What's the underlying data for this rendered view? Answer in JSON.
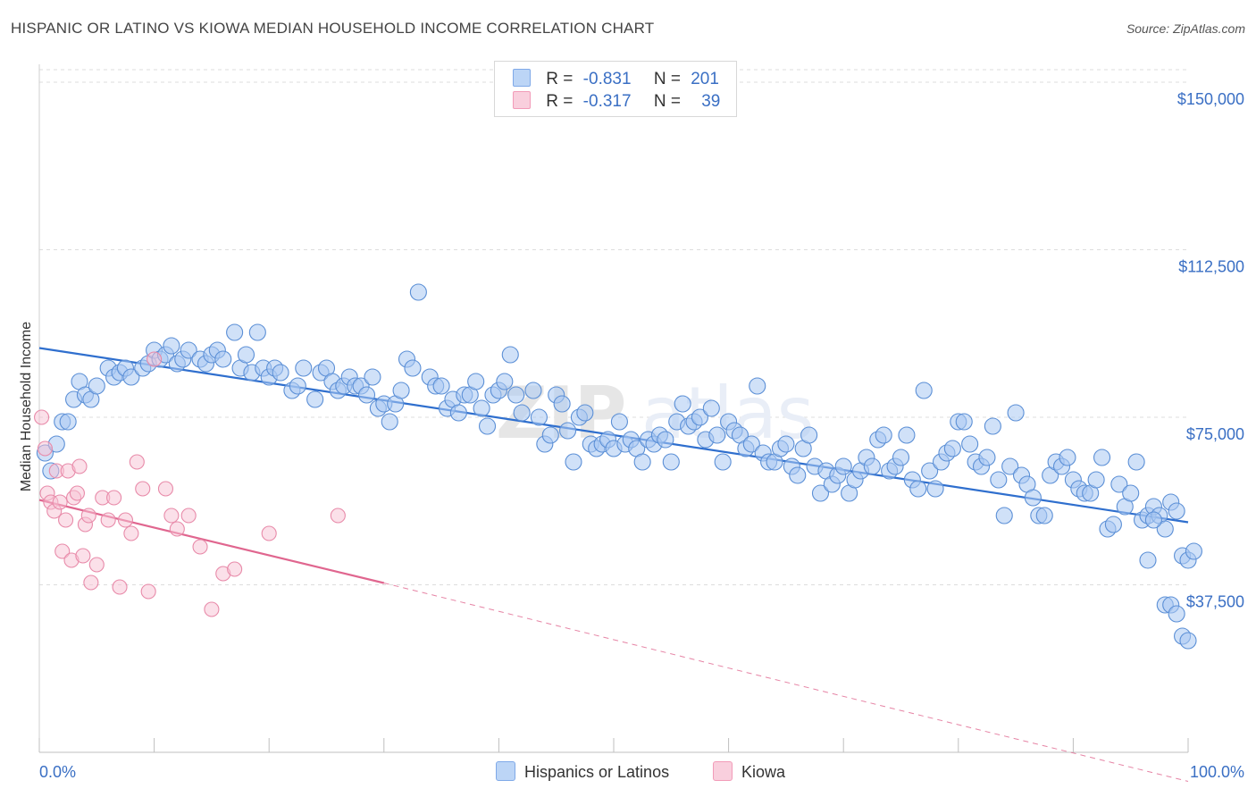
{
  "title": "HISPANIC OR LATINO VS KIOWA MEDIAN HOUSEHOLD INCOME CORRELATION CHART",
  "source": "Source: ZipAtlas.com",
  "watermark": "ZIPatlas",
  "legend": {
    "rows": [
      {
        "r_label": "R =",
        "r_value": "-0.831",
        "n_label": "N =",
        "n_value": "201",
        "color": "#7fa9e8"
      },
      {
        "r_label": "R =",
        "r_value": "-0.317",
        "n_label": "N =",
        "n_value": "39",
        "color": "#f29bb8"
      }
    ],
    "bottom": [
      "Hispanics or Latinos",
      "Kiowa"
    ]
  },
  "colors": {
    "blue_fill": "#a9c8f2",
    "blue_stroke": "#5b8fd6",
    "blue_line": "#2f6fce",
    "pink_fill": "#f7c2d3",
    "pink_stroke": "#e88aa9",
    "pink_line": "#e0668f",
    "tick_text": "#3a6fc4",
    "grid": "#dddddd"
  },
  "chart_data": {
    "type": "scatter",
    "title": "HISPANIC OR LATINO VS KIOWA MEDIAN HOUSEHOLD INCOME CORRELATION CHART",
    "xlabel": "",
    "ylabel": "Median Household Income",
    "x_tick_labels": [
      "0.0%",
      "100.0%"
    ],
    "y_tick_labels": [
      "$37,500",
      "$75,000",
      "$112,500",
      "$150,000"
    ],
    "y_ticks": [
      37500,
      75000,
      112500,
      150000
    ],
    "xlim": [
      0,
      100
    ],
    "ylim": [
      0,
      154000
    ],
    "grid": true,
    "legend_position": "top-center",
    "series": [
      {
        "name": "Hispanics or Latinos",
        "r": -0.831,
        "n": 201,
        "trend": {
          "x": [
            0,
            100
          ],
          "y": [
            90500,
            51500
          ],
          "dashed_after": null
        },
        "points": [
          [
            0.5,
            67000
          ],
          [
            1,
            63000
          ],
          [
            1.5,
            69000
          ],
          [
            2,
            74000
          ],
          [
            2.5,
            74000
          ],
          [
            3,
            79000
          ],
          [
            3.5,
            83000
          ],
          [
            4,
            80000
          ],
          [
            4.5,
            79000
          ],
          [
            5,
            82000
          ],
          [
            6,
            86000
          ],
          [
            6.5,
            84000
          ],
          [
            7,
            85000
          ],
          [
            7.5,
            86000
          ],
          [
            8,
            84000
          ],
          [
            9,
            86000
          ],
          [
            9.5,
            87000
          ],
          [
            10,
            90000
          ],
          [
            10.5,
            88000
          ],
          [
            11,
            89000
          ],
          [
            11.5,
            91000
          ],
          [
            12,
            87000
          ],
          [
            12.5,
            88000
          ],
          [
            13,
            90000
          ],
          [
            14,
            88000
          ],
          [
            14.5,
            87000
          ],
          [
            15,
            89000
          ],
          [
            15.5,
            90000
          ],
          [
            16,
            88000
          ],
          [
            17,
            94000
          ],
          [
            17.5,
            86000
          ],
          [
            18,
            89000
          ],
          [
            18.5,
            85000
          ],
          [
            19,
            94000
          ],
          [
            19.5,
            86000
          ],
          [
            20,
            84000
          ],
          [
            20.5,
            86000
          ],
          [
            21,
            85000
          ],
          [
            22,
            81000
          ],
          [
            22.5,
            82000
          ],
          [
            23,
            86000
          ],
          [
            24,
            79000
          ],
          [
            24.5,
            85000
          ],
          [
            25,
            86000
          ],
          [
            25.5,
            83000
          ],
          [
            26,
            81000
          ],
          [
            26.5,
            82000
          ],
          [
            27,
            84000
          ],
          [
            27.5,
            82000
          ],
          [
            28,
            82000
          ],
          [
            28.5,
            80000
          ],
          [
            29,
            84000
          ],
          [
            29.5,
            77000
          ],
          [
            30,
            78000
          ],
          [
            30.5,
            74000
          ],
          [
            31,
            78000
          ],
          [
            31.5,
            81000
          ],
          [
            32,
            88000
          ],
          [
            32.5,
            86000
          ],
          [
            33,
            103000
          ],
          [
            34,
            84000
          ],
          [
            34.5,
            82000
          ],
          [
            35,
            82000
          ],
          [
            35.5,
            77000
          ],
          [
            36,
            79000
          ],
          [
            36.5,
            76000
          ],
          [
            37,
            80000
          ],
          [
            37.5,
            80000
          ],
          [
            38,
            83000
          ],
          [
            38.5,
            77000
          ],
          [
            39,
            73000
          ],
          [
            39.5,
            80000
          ],
          [
            40,
            81000
          ],
          [
            40.5,
            83000
          ],
          [
            41,
            89000
          ],
          [
            41.5,
            80000
          ],
          [
            42,
            76000
          ],
          [
            43,
            81000
          ],
          [
            43.5,
            75000
          ],
          [
            44,
            69000
          ],
          [
            44.5,
            71000
          ],
          [
            45,
            80000
          ],
          [
            45.5,
            78000
          ],
          [
            46,
            72000
          ],
          [
            46.5,
            65000
          ],
          [
            47,
            75000
          ],
          [
            47.5,
            76000
          ],
          [
            48,
            69000
          ],
          [
            48.5,
            68000
          ],
          [
            49,
            69000
          ],
          [
            49.5,
            70000
          ],
          [
            50,
            68000
          ],
          [
            50.5,
            74000
          ],
          [
            51,
            69000
          ],
          [
            51.5,
            70000
          ],
          [
            52,
            68000
          ],
          [
            52.5,
            65000
          ],
          [
            53,
            70000
          ],
          [
            53.5,
            69000
          ],
          [
            54,
            71000
          ],
          [
            54.5,
            70000
          ],
          [
            55,
            65000
          ],
          [
            55.5,
            74000
          ],
          [
            56,
            78000
          ],
          [
            56.5,
            73000
          ],
          [
            57,
            74000
          ],
          [
            57.5,
            75000
          ],
          [
            58,
            70000
          ],
          [
            58.5,
            77000
          ],
          [
            59,
            71000
          ],
          [
            59.5,
            65000
          ],
          [
            60,
            74000
          ],
          [
            60.5,
            72000
          ],
          [
            61,
            71000
          ],
          [
            61.5,
            68000
          ],
          [
            62,
            69000
          ],
          [
            62.5,
            82000
          ],
          [
            63,
            67000
          ],
          [
            63.5,
            65000
          ],
          [
            64,
            65000
          ],
          [
            64.5,
            68000
          ],
          [
            65,
            69000
          ],
          [
            65.5,
            64000
          ],
          [
            66,
            62000
          ],
          [
            66.5,
            68000
          ],
          [
            67,
            71000
          ],
          [
            67.5,
            64000
          ],
          [
            68,
            58000
          ],
          [
            68.5,
            63000
          ],
          [
            69,
            60000
          ],
          [
            69.5,
            62000
          ],
          [
            70,
            64000
          ],
          [
            70.5,
            58000
          ],
          [
            71,
            61000
          ],
          [
            71.5,
            63000
          ],
          [
            72,
            66000
          ],
          [
            72.5,
            64000
          ],
          [
            73,
            70000
          ],
          [
            73.5,
            71000
          ],
          [
            74,
            63000
          ],
          [
            74.5,
            64000
          ],
          [
            75,
            66000
          ],
          [
            75.5,
            71000
          ],
          [
            76,
            61000
          ],
          [
            76.5,
            59000
          ],
          [
            77,
            81000
          ],
          [
            77.5,
            63000
          ],
          [
            78,
            59000
          ],
          [
            78.5,
            65000
          ],
          [
            79,
            67000
          ],
          [
            79.5,
            68000
          ],
          [
            80,
            74000
          ],
          [
            80.5,
            74000
          ],
          [
            81,
            69000
          ],
          [
            81.5,
            65000
          ],
          [
            82,
            64000
          ],
          [
            82.5,
            66000
          ],
          [
            83,
            73000
          ],
          [
            83.5,
            61000
          ],
          [
            84,
            53000
          ],
          [
            84.5,
            64000
          ],
          [
            85,
            76000
          ],
          [
            85.5,
            62000
          ],
          [
            86,
            60000
          ],
          [
            86.5,
            57000
          ],
          [
            87,
            53000
          ],
          [
            87.5,
            53000
          ],
          [
            88,
            62000
          ],
          [
            88.5,
            65000
          ],
          [
            89,
            64000
          ],
          [
            89.5,
            66000
          ],
          [
            90,
            61000
          ],
          [
            90.5,
            59000
          ],
          [
            91,
            58000
          ],
          [
            91.5,
            58000
          ],
          [
            92,
            61000
          ],
          [
            92.5,
            66000
          ],
          [
            93,
            50000
          ],
          [
            93.5,
            51000
          ],
          [
            94,
            60000
          ],
          [
            94.5,
            55000
          ],
          [
            95,
            58000
          ],
          [
            95.5,
            65000
          ],
          [
            96,
            52000
          ],
          [
            96.5,
            53000
          ],
          [
            97,
            55000
          ],
          [
            97.5,
            53000
          ],
          [
            98,
            50000
          ],
          [
            98.5,
            56000
          ],
          [
            99,
            54000
          ],
          [
            99.5,
            44000
          ],
          [
            100,
            43000
          ],
          [
            100.5,
            45000
          ],
          [
            97,
            52000
          ],
          [
            96.5,
            43000
          ],
          [
            98,
            33000
          ],
          [
            98.5,
            33000
          ],
          [
            99,
            31000
          ],
          [
            99.5,
            26000
          ],
          [
            100,
            25000
          ]
        ]
      },
      {
        "name": "Kiowa",
        "r": -0.317,
        "n": 39,
        "trend": {
          "x": [
            0,
            30,
            100
          ],
          "y": [
            56500,
            37900,
            -6500
          ],
          "solid_until": 30
        },
        "points": [
          [
            0.2,
            75000
          ],
          [
            0.5,
            68000
          ],
          [
            0.7,
            58000
          ],
          [
            1,
            56000
          ],
          [
            1.3,
            54000
          ],
          [
            1.5,
            63000
          ],
          [
            1.8,
            56000
          ],
          [
            2,
            45000
          ],
          [
            2.3,
            52000
          ],
          [
            2.5,
            63000
          ],
          [
            2.8,
            43000
          ],
          [
            3,
            57000
          ],
          [
            3.3,
            58000
          ],
          [
            3.5,
            64000
          ],
          [
            3.8,
            44000
          ],
          [
            4,
            51000
          ],
          [
            4.3,
            53000
          ],
          [
            4.5,
            38000
          ],
          [
            5,
            42000
          ],
          [
            5.5,
            57000
          ],
          [
            6,
            52000
          ],
          [
            6.5,
            57000
          ],
          [
            7,
            37000
          ],
          [
            7.5,
            52000
          ],
          [
            8,
            49000
          ],
          [
            8.5,
            65000
          ],
          [
            9,
            59000
          ],
          [
            9.5,
            36000
          ],
          [
            10,
            88000
          ],
          [
            11,
            59000
          ],
          [
            11.5,
            53000
          ],
          [
            12,
            50000
          ],
          [
            13,
            53000
          ],
          [
            14,
            46000
          ],
          [
            15,
            32000
          ],
          [
            16,
            40000
          ],
          [
            17,
            41000
          ],
          [
            20,
            49000
          ],
          [
            26,
            53000
          ]
        ]
      }
    ]
  }
}
